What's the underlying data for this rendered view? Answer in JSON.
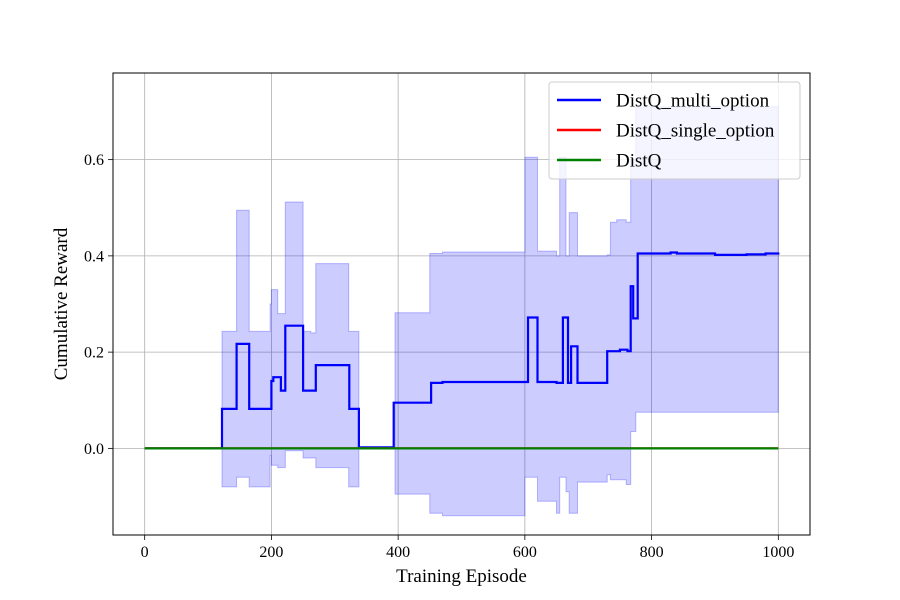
{
  "chart_data": {
    "type": "line",
    "title": "",
    "xlabel": "Training Episode",
    "ylabel": "Cumulative Reward",
    "xlim": [
      -50,
      1050
    ],
    "ylim": [
      -0.18,
      0.78
    ],
    "xticks": [
      0,
      200,
      400,
      600,
      800,
      1000
    ],
    "yticks": [
      0.0,
      0.2,
      0.4,
      0.6
    ],
    "xtick_labels": [
      "0",
      "200",
      "400",
      "600",
      "800",
      "1000"
    ],
    "ytick_labels": [
      "0.0",
      "0.2",
      "0.4",
      "0.6"
    ],
    "grid": true,
    "legend_position": "top-right",
    "series": [
      {
        "name": "DistQ_multi_option",
        "color": "#0000ff",
        "step": true,
        "x": [
          0,
          122,
          145,
          165,
          182,
          200,
          203,
          207,
          215,
          222,
          228,
          250,
          262,
          270,
          275,
          315,
          323,
          338,
          365,
          393,
          440,
          452,
          470,
          585,
          605,
          620,
          650,
          660,
          668,
          673,
          683,
          730,
          738,
          750,
          762,
          767,
          771,
          778,
          800,
          830,
          840,
          870,
          900,
          920,
          950,
          980,
          990,
          1000
        ],
        "y": [
          0.0,
          0.082,
          0.217,
          0.082,
          0.082,
          0.14,
          0.148,
          0.148,
          0.12,
          0.255,
          0.255,
          0.12,
          0.12,
          0.173,
          0.173,
          0.173,
          0.082,
          0.002,
          0.002,
          0.095,
          0.095,
          0.136,
          0.138,
          0.138,
          0.272,
          0.138,
          0.136,
          0.272,
          0.136,
          0.212,
          0.136,
          0.202,
          0.202,
          0.205,
          0.202,
          0.337,
          0.27,
          0.405,
          0.405,
          0.407,
          0.405,
          0.405,
          0.402,
          0.402,
          0.403,
          0.405,
          0.405,
          0.407
        ]
      },
      {
        "name": "DistQ_single_option",
        "color": "#ff0000",
        "x": [
          0,
          1000
        ],
        "y": [
          0.0,
          0.0
        ]
      },
      {
        "name": "DistQ",
        "color": "#008000",
        "x": [
          0,
          1000
        ],
        "y": [
          0.0,
          0.0
        ]
      }
    ],
    "band": {
      "series": "DistQ_multi_option",
      "color": "#0000ff",
      "x": [
        0,
        122,
        145,
        165,
        182,
        198,
        200,
        203,
        210,
        222,
        228,
        250,
        262,
        270,
        322,
        338,
        395,
        450,
        470,
        585,
        600,
        620,
        650,
        655,
        665,
        670,
        683,
        730,
        735,
        745,
        760,
        767,
        775,
        1000
      ],
      "upper": [
        0.0,
        0.243,
        0.495,
        0.243,
        0.243,
        0.3,
        0.33,
        0.33,
        0.28,
        0.512,
        0.512,
        0.243,
        0.24,
        0.384,
        0.243,
        0.002,
        0.282,
        0.405,
        0.408,
        0.408,
        0.605,
        0.41,
        0.4,
        0.605,
        0.4,
        0.49,
        0.4,
        0.402,
        0.47,
        0.475,
        0.47,
        0.6,
        0.71,
        0.71
      ],
      "lower": [
        0.0,
        -0.08,
        -0.06,
        -0.08,
        -0.08,
        -0.015,
        -0.035,
        -0.035,
        -0.04,
        -0.005,
        -0.005,
        -0.02,
        -0.02,
        -0.04,
        -0.08,
        0.002,
        -0.095,
        -0.135,
        -0.14,
        -0.14,
        -0.06,
        -0.11,
        -0.135,
        -0.06,
        -0.09,
        -0.135,
        -0.07,
        -0.055,
        -0.065,
        -0.065,
        -0.075,
        0.035,
        0.075,
        0.075
      ]
    }
  }
}
